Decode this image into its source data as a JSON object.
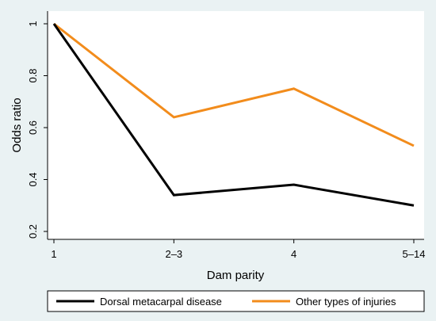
{
  "chart_data": {
    "type": "line",
    "categories": [
      "1",
      "2–3",
      "4",
      "5–14"
    ],
    "series": [
      {
        "name": "Dorsal metacarpal disease",
        "values": [
          1.0,
          0.34,
          0.38,
          0.3
        ],
        "color": "#000000"
      },
      {
        "name": "Other types of injuries",
        "values": [
          1.0,
          0.64,
          0.75,
          0.53
        ],
        "color": "#f28c1c"
      }
    ],
    "xlabel": "Dam parity",
    "ylabel": "Odds ratio",
    "ylim": [
      0.2,
      1.0
    ],
    "yticks": [
      "0.2",
      "0.4",
      "0.6",
      "0.8",
      "1"
    ],
    "grid": false,
    "legend_position": "bottom",
    "background": "#eaf2f3",
    "plot_background": "#ffffff"
  }
}
